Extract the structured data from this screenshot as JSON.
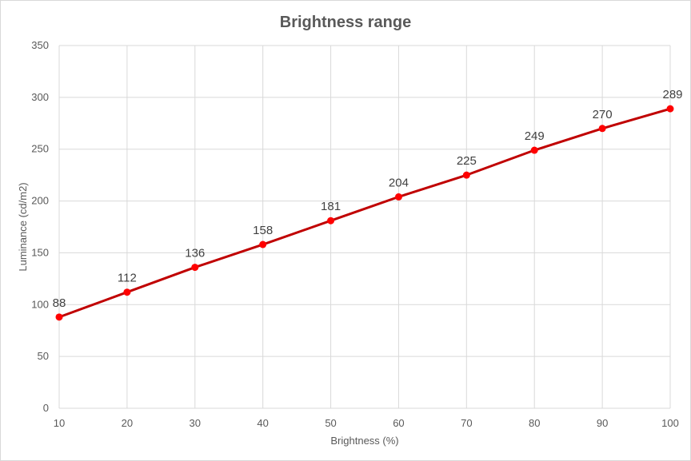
{
  "chart_data": {
    "type": "line",
    "title": "Brightness range",
    "xlabel": "Brightness (%)",
    "ylabel": "Luminance (cd/m2)",
    "x": [
      10,
      20,
      30,
      40,
      50,
      60,
      70,
      80,
      90,
      100
    ],
    "series": [
      {
        "values": [
          88,
          112,
          136,
          158,
          181,
          204,
          225,
          249,
          270,
          289
        ],
        "color": "#c00000",
        "marker_color": "#ff0000"
      }
    ],
    "data_labels": [
      "88",
      "112",
      "136",
      "158",
      "181",
      "204",
      "225",
      "249",
      "270",
      "289"
    ],
    "xlim": [
      10,
      100
    ],
    "ylim": [
      0,
      350
    ],
    "x_ticks": [
      "10",
      "20",
      "30",
      "40",
      "50",
      "60",
      "70",
      "80",
      "90",
      "100"
    ],
    "y_ticks": [
      "0",
      "50",
      "100",
      "150",
      "200",
      "250",
      "300",
      "350"
    ],
    "grid": true,
    "legend": "none"
  }
}
